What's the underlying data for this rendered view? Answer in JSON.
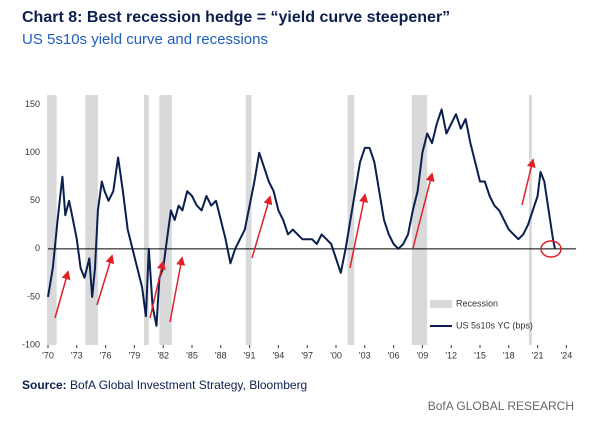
{
  "chart_data": {
    "type": "line",
    "title": "Chart 8: Best recession hedge = “yield curve steepener”",
    "subtitle": "US 5s10s yield curve and recessions",
    "x": [
      1970.0,
      1970.5,
      1971.0,
      1971.5,
      1971.8,
      1972.2,
      1972.6,
      1973.0,
      1973.4,
      1973.8,
      1974.3,
      1974.6,
      1974.9,
      1975.2,
      1975.6,
      1975.9,
      1976.3,
      1976.8,
      1977.3,
      1977.8,
      1978.3,
      1978.8,
      1979.3,
      1979.8,
      1980.2,
      1980.5,
      1980.9,
      1981.3,
      1981.6,
      1982.0,
      1982.4,
      1982.8,
      1983.2,
      1983.6,
      1984.0,
      1984.5,
      1985.0,
      1985.5,
      1986.0,
      1986.5,
      1987.0,
      1987.5,
      1988.0,
      1988.5,
      1989.0,
      1989.5,
      1990.0,
      1990.5,
      1991.0,
      1991.5,
      1992.0,
      1992.5,
      1993.0,
      1993.5,
      1994.0,
      1994.5,
      1995.0,
      1995.5,
      1996.0,
      1996.5,
      1997.0,
      1997.5,
      1998.0,
      1998.5,
      1999.0,
      1999.5,
      2000.0,
      2000.5,
      2001.0,
      2001.5,
      2002.0,
      2002.5,
      2003.0,
      2003.5,
      2004.0,
      2004.5,
      2005.0,
      2005.5,
      2006.0,
      2006.5,
      2007.0,
      2007.5,
      2008.0,
      2008.5,
      2009.0,
      2009.5,
      2010.0,
      2010.5,
      2011.0,
      2011.5,
      2012.0,
      2012.5,
      2013.0,
      2013.5,
      2014.0,
      2014.5,
      2015.0,
      2015.5,
      2016.0,
      2016.5,
      2017.0,
      2017.5,
      2018.0,
      2018.5,
      2019.0,
      2019.5,
      2020.0,
      2020.5,
      2021.0,
      2021.3,
      2021.7,
      2022.0,
      2022.3,
      2022.6,
      2022.8
    ],
    "series": [
      {
        "name": "US 5s10s YC (bps)",
        "color": "#0b1f4f",
        "values": [
          -50,
          -20,
          30,
          75,
          35,
          50,
          30,
          10,
          -20,
          -30,
          -10,
          -50,
          -20,
          40,
          70,
          60,
          50,
          60,
          95,
          60,
          20,
          0,
          -20,
          -40,
          -70,
          0,
          -60,
          -80,
          -30,
          -20,
          10,
          40,
          30,
          45,
          40,
          60,
          55,
          45,
          40,
          55,
          45,
          50,
          30,
          10,
          -15,
          0,
          10,
          20,
          45,
          70,
          100,
          85,
          70,
          60,
          40,
          30,
          15,
          20,
          15,
          10,
          10,
          10,
          5,
          15,
          10,
          5,
          -10,
          -25,
          0,
          30,
          60,
          90,
          105,
          105,
          90,
          60,
          30,
          15,
          5,
          0,
          5,
          15,
          40,
          60,
          100,
          120,
          110,
          130,
          145,
          120,
          130,
          140,
          125,
          135,
          110,
          90,
          70,
          70,
          55,
          45,
          40,
          30,
          20,
          15,
          10,
          15,
          25,
          40,
          55,
          80,
          70,
          50,
          30,
          10,
          0
        ]
      }
    ],
    "recessions": [
      {
        "start": 1969.9,
        "end": 1970.9
      },
      {
        "start": 1973.9,
        "end": 1975.2
      },
      {
        "start": 1980.0,
        "end": 1980.5
      },
      {
        "start": 1981.6,
        "end": 1982.9
      },
      {
        "start": 1990.6,
        "end": 1991.2
      },
      {
        "start": 2001.2,
        "end": 2001.9
      },
      {
        "start": 2007.9,
        "end": 2009.5
      },
      {
        "start": 2020.1,
        "end": 2020.4
      }
    ],
    "recession_label": "Recession",
    "xlim": [
      1970,
      2025
    ],
    "ylim": [
      -100,
      160
    ],
    "yticks": [
      -100,
      -50,
      0,
      50,
      100,
      150
    ],
    "xticks": [
      {
        "value": 1970,
        "label": "'70"
      },
      {
        "value": 1973,
        "label": "'73"
      },
      {
        "value": 1976,
        "label": "'76"
      },
      {
        "value": 1979,
        "label": "'79"
      },
      {
        "value": 1982,
        "label": "'82"
      },
      {
        "value": 1985,
        "label": "'85"
      },
      {
        "value": 1988,
        "label": "'88"
      },
      {
        "value": 1991,
        "label": "'91"
      },
      {
        "value": 1994,
        "label": "'94"
      },
      {
        "value": 1997,
        "label": "'97"
      },
      {
        "value": 2000,
        "label": "'00"
      },
      {
        "value": 2003,
        "label": "'03"
      },
      {
        "value": 2006,
        "label": "'06"
      },
      {
        "value": 2009,
        "label": "'09"
      },
      {
        "value": 2012,
        "label": "'12"
      },
      {
        "value": 2015,
        "label": "'15"
      },
      {
        "value": 2018,
        "label": "'18"
      },
      {
        "value": 2021,
        "label": "'21"
      },
      {
        "value": 2024,
        "label": "'24"
      }
    ],
    "source_label": "Source:",
    "source": "BofA Global Investment Strategy, Bloomberg",
    "brand": "BofA GLOBAL RESEARCH"
  }
}
